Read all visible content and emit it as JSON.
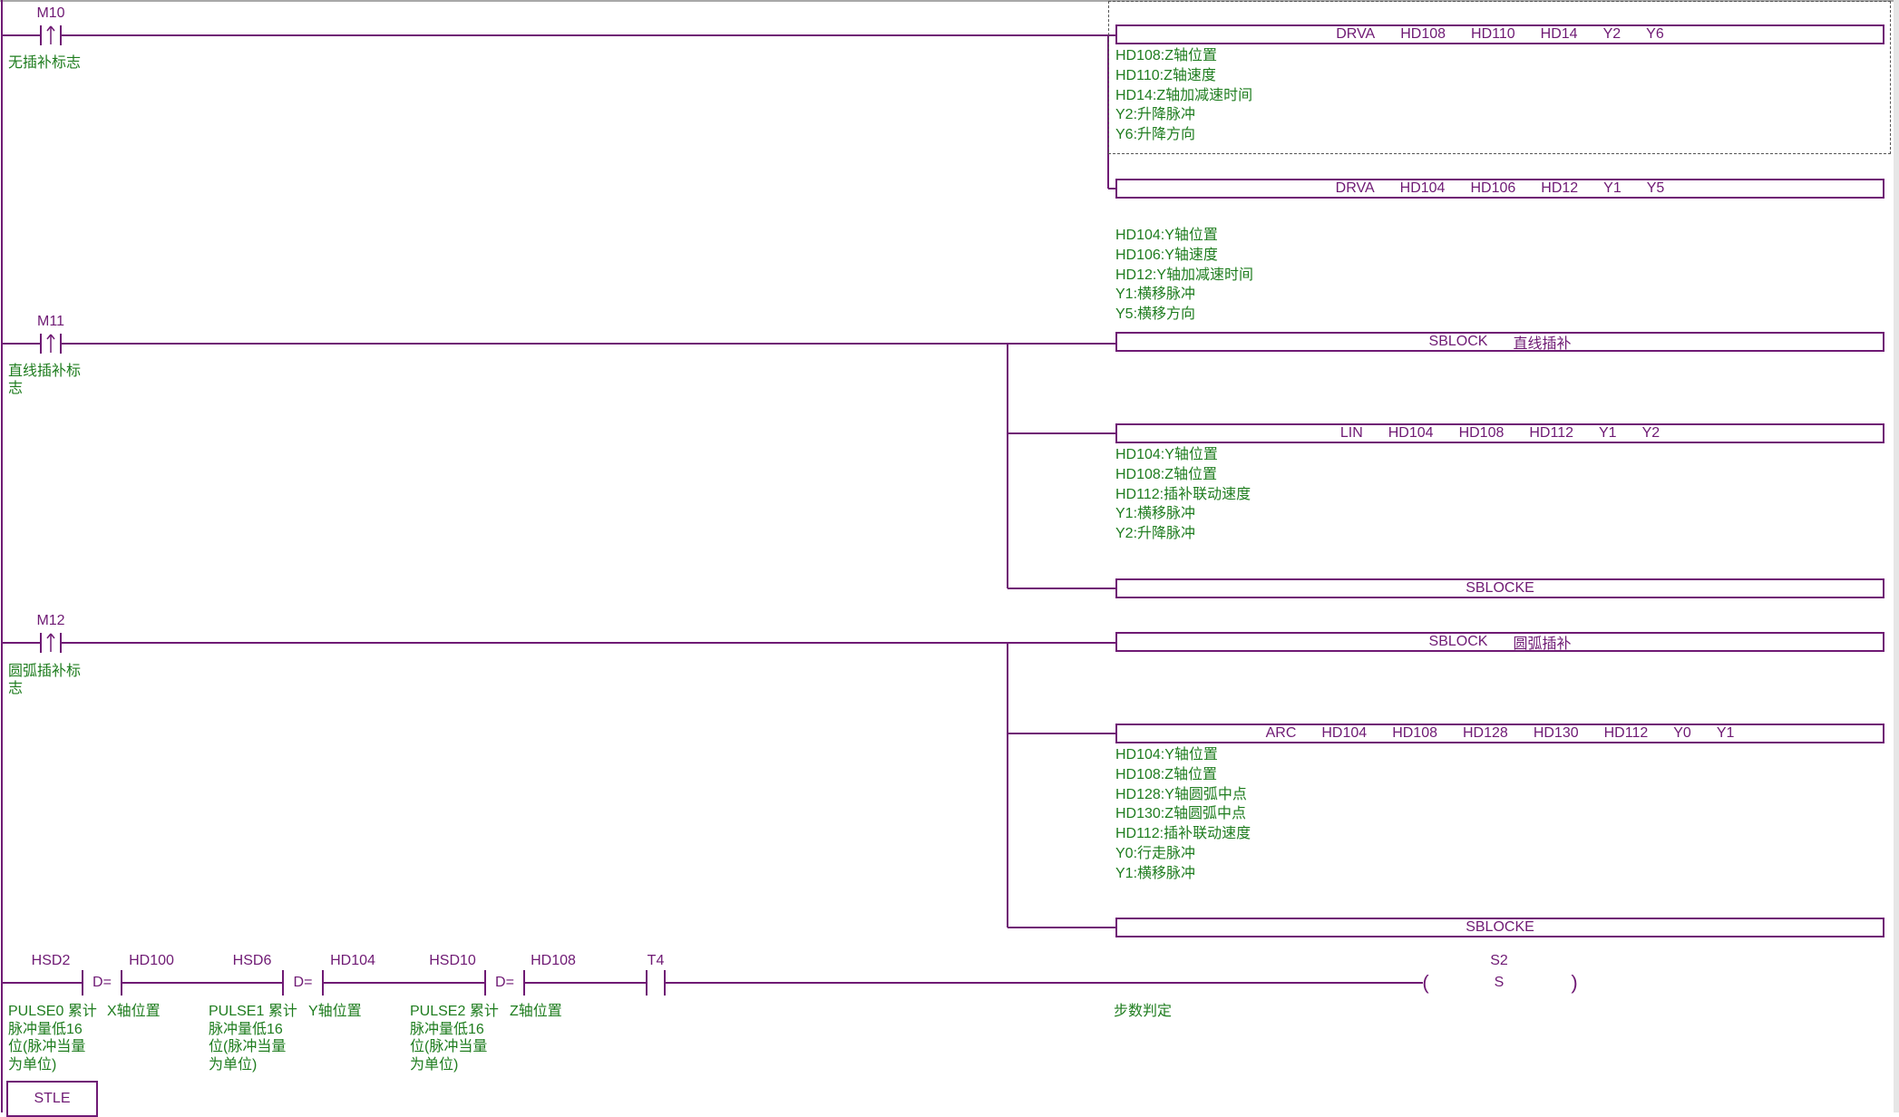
{
  "colors": {
    "wire": "#6f1a74",
    "comment": "#1f7d1f"
  },
  "rungs": [
    {
      "contact": {
        "label": "M10",
        "type": "rising-edge",
        "comment": [
          "无插补标志"
        ]
      },
      "outputs": [
        {
          "instr": "DRVA",
          "ops": [
            "HD108",
            "HD110",
            "HD14",
            "Y2",
            "Y6"
          ],
          "comments": [
            "HD108:Z轴位置",
            "HD110:Z轴速度",
            "HD14:Z轴加减速时间",
            "Y2:升降脉冲",
            "Y6:升降方向"
          ]
        },
        {
          "instr": "DRVA",
          "ops": [
            "HD104",
            "HD106",
            "HD12",
            "Y1",
            "Y5"
          ],
          "comments": [
            "HD104:Y轴位置",
            "HD106:Y轴速度",
            "HD12:Y轴加减速时间",
            "Y1:横移脉冲",
            "Y5:横移方向"
          ]
        }
      ]
    },
    {
      "contact": {
        "label": "M11",
        "type": "rising-edge",
        "comment": [
          "直线插补标",
          "志"
        ]
      },
      "outputs": [
        {
          "instr": "SBLOCK",
          "ops": [
            "直线插补"
          ],
          "comments": []
        },
        {
          "instr": "LIN",
          "ops": [
            "HD104",
            "HD108",
            "HD112",
            "Y1",
            "Y2"
          ],
          "comments": [
            "HD104:Y轴位置",
            "HD108:Z轴位置",
            "HD112:插补联动速度",
            "Y1:横移脉冲",
            "Y2:升降脉冲"
          ]
        },
        {
          "instr": "SBLOCKE",
          "ops": [],
          "comments": []
        }
      ]
    },
    {
      "contact": {
        "label": "M12",
        "type": "rising-edge",
        "comment": [
          "圆弧插补标",
          "志"
        ]
      },
      "outputs": [
        {
          "instr": "SBLOCK",
          "ops": [
            "圆弧插补"
          ],
          "comments": []
        },
        {
          "instr": "ARC",
          "ops": [
            "HD104",
            "HD108",
            "HD128",
            "HD130",
            "HD112",
            "Y0",
            "Y1"
          ],
          "comments": [
            "HD104:Y轴位置",
            "HD108:Z轴位置",
            "HD128:Y轴圆弧中点",
            "HD130:Z轴圆弧中点",
            "HD112:插补联动速度",
            "Y0:行走脉冲",
            "Y1:横移脉冲"
          ]
        },
        {
          "instr": "SBLOCKE",
          "ops": [],
          "comments": []
        }
      ]
    }
  ],
  "rung4": {
    "compares": [
      {
        "left": "HSD2",
        "op": "D=",
        "right": "HD100",
        "left_comment": [
          "PULSE0 累计",
          "脉冲量低16",
          "位(脉冲当量",
          "为单位)"
        ],
        "right_comment": [
          "X轴位置"
        ]
      },
      {
        "left": "HSD6",
        "op": "D=",
        "right": "HD104",
        "left_comment": [
          "PULSE1 累计",
          "脉冲量低16",
          "位(脉冲当量",
          "为单位)"
        ],
        "right_comment": [
          "Y轴位置"
        ]
      },
      {
        "left": "HSD10",
        "op": "D=",
        "right": "HD108",
        "left_comment": [
          "PULSE2 累计",
          "脉冲量低16",
          "位(脉冲当量",
          "为单位)"
        ],
        "right_comment": [
          "Z轴位置"
        ]
      }
    ],
    "contact": {
      "label": "T4",
      "type": "normally-open"
    },
    "coil": {
      "label": "S2",
      "type": "S",
      "comment": "步数判定",
      "open": "(",
      "close": ")"
    }
  },
  "stle": {
    "label": "STLE"
  }
}
